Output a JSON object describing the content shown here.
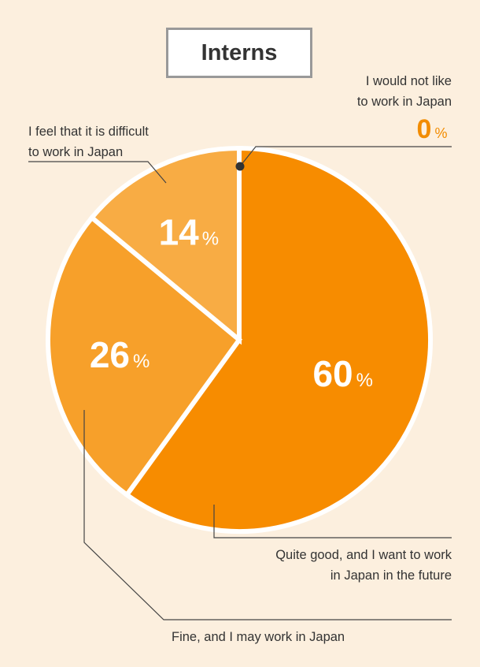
{
  "chart_data": {
    "type": "pie",
    "title": "Interns",
    "slices": [
      {
        "label": "Quite good, and I want to work in Japan in the future",
        "label_lines": [
          "Quite good, and I want to work",
          "in Japan in the future"
        ],
        "value": 60,
        "color": "#f78c00"
      },
      {
        "label": "Fine, and I may work in Japan",
        "label_lines": [
          "Fine, and I may work in Japan"
        ],
        "value": 26,
        "color": "#f7a02a"
      },
      {
        "label": "I feel that it is difficult to work in Japan",
        "label_lines": [
          "I feel that it is difficult",
          "to work in Japan"
        ],
        "value": 14,
        "color": "#f8ac44"
      },
      {
        "label": "I would not like to work in Japan",
        "label_lines": [
          "I would not like",
          "to work in Japan"
        ],
        "value": 0,
        "color": "#f78c00"
      }
    ],
    "percent_symbol": "%"
  }
}
